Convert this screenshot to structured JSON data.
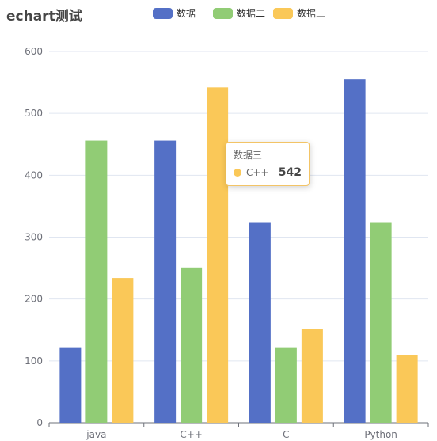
{
  "title": "echart测试",
  "colors": [
    "#5470c6",
    "#91cc75",
    "#fac858"
  ],
  "tooltip": {
    "series": "数据三",
    "category": "C++",
    "value": "542"
  },
  "chart_data": {
    "type": "bar",
    "title": "echart测试",
    "categories": [
      "java",
      "C++",
      "C",
      "Python"
    ],
    "series": [
      {
        "name": "数据一",
        "values": [
          122,
          456,
          323,
          555
        ]
      },
      {
        "name": "数据二",
        "values": [
          456,
          251,
          122,
          323
        ]
      },
      {
        "name": "数据三",
        "values": [
          234,
          542,
          152,
          110
        ]
      }
    ],
    "ylim": [
      0,
      600
    ],
    "yticks": [
      0,
      100,
      200,
      300,
      400,
      500,
      600
    ],
    "grid": true,
    "legend": "top-center"
  }
}
